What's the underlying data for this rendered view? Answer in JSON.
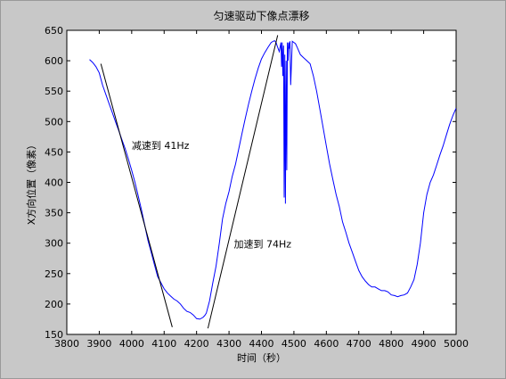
{
  "chart_data": {
    "type": "line",
    "title": "匀速驱动下像点漂移",
    "xlabel": "时间（秒）",
    "ylabel": "X方向位置（像素）",
    "xlim": [
      3800,
      5000
    ],
    "ylim": [
      150,
      650
    ],
    "xticks": [
      3800,
      3900,
      4000,
      4100,
      4200,
      4300,
      4400,
      4500,
      4600,
      4700,
      4800,
      4900,
      5000
    ],
    "yticks": [
      150,
      200,
      250,
      300,
      350,
      400,
      450,
      500,
      550,
      600,
      650
    ],
    "grid": false,
    "series": [
      {
        "color": "#0000ff",
        "x": [
          3870,
          3880,
          3890,
          3900,
          3910,
          3920,
          3930,
          3940,
          3950,
          3960,
          3970,
          3980,
          3990,
          4000,
          4010,
          4020,
          4030,
          4040,
          4050,
          4060,
          4070,
          4080,
          4090,
          4100,
          4110,
          4120,
          4130,
          4140,
          4150,
          4160,
          4170,
          4180,
          4190,
          4200,
          4210,
          4220,
          4225,
          4230,
          4240,
          4250,
          4260,
          4270,
          4280,
          4290,
          4300,
          4310,
          4320,
          4330,
          4340,
          4350,
          4360,
          4370,
          4380,
          4390,
          4400,
          4410,
          4420,
          4430,
          4440,
          4445,
          4450,
          4455,
          4460,
          4462,
          4464,
          4466,
          4468,
          4470,
          4472,
          4474,
          4476,
          4478,
          4480,
          4482,
          4484,
          4486,
          4488,
          4490,
          4495,
          4500,
          4505,
          4510,
          4520,
          4530,
          4540,
          4550,
          4560,
          4570,
          4580,
          4590,
          4600,
          4610,
          4620,
          4630,
          4640,
          4650,
          4660,
          4670,
          4680,
          4690,
          4700,
          4710,
          4720,
          4730,
          4740,
          4750,
          4760,
          4770,
          4780,
          4790,
          4800,
          4810,
          4820,
          4830,
          4840,
          4850,
          4860,
          4870,
          4880,
          4890,
          4900,
          4910,
          4920,
          4930,
          4940,
          4950,
          4960,
          4970,
          4980,
          4990,
          5000
        ],
        "y": [
          602,
          597,
          590,
          580,
          560,
          545,
          530,
          515,
          500,
          485,
          470,
          455,
          438,
          420,
          400,
          378,
          355,
          330,
          305,
          285,
          265,
          245,
          235,
          225,
          218,
          213,
          208,
          205,
          200,
          193,
          188,
          186,
          182,
          176,
          175,
          178,
          181,
          185,
          205,
          235,
          262,
          300,
          340,
          365,
          385,
          410,
          430,
          455,
          480,
          505,
          528,
          550,
          570,
          588,
          603,
          613,
          622,
          630,
          633,
          630,
          622,
          615,
          630,
          590,
          630,
          575,
          625,
          375,
          610,
          365,
          600,
          420,
          630,
          600,
          630,
          620,
          632,
          560,
          632,
          630,
          628,
          622,
          610,
          605,
          600,
          595,
          575,
          550,
          520,
          490,
          460,
          430,
          405,
          380,
          360,
          335,
          318,
          300,
          285,
          270,
          255,
          245,
          238,
          232,
          228,
          228,
          225,
          222,
          222,
          220,
          215,
          214,
          212,
          214,
          215,
          218,
          228,
          240,
          265,
          300,
          350,
          380,
          400,
          412,
          428,
          445,
          460,
          478,
          495,
          510,
          522
        ]
      }
    ],
    "trend_lines": [
      {
        "color": "#000000",
        "x": [
          3905,
          4125
        ],
        "y": [
          595,
          162
        ]
      },
      {
        "color": "#000000",
        "x": [
          4235,
          4450
        ],
        "y": [
          160,
          642
        ]
      }
    ],
    "annotations": [
      {
        "text": "减速到 41Hz",
        "x": 4000,
        "y": 455
      },
      {
        "text": "加速到 74Hz",
        "x": 4315,
        "y": 293
      }
    ]
  }
}
